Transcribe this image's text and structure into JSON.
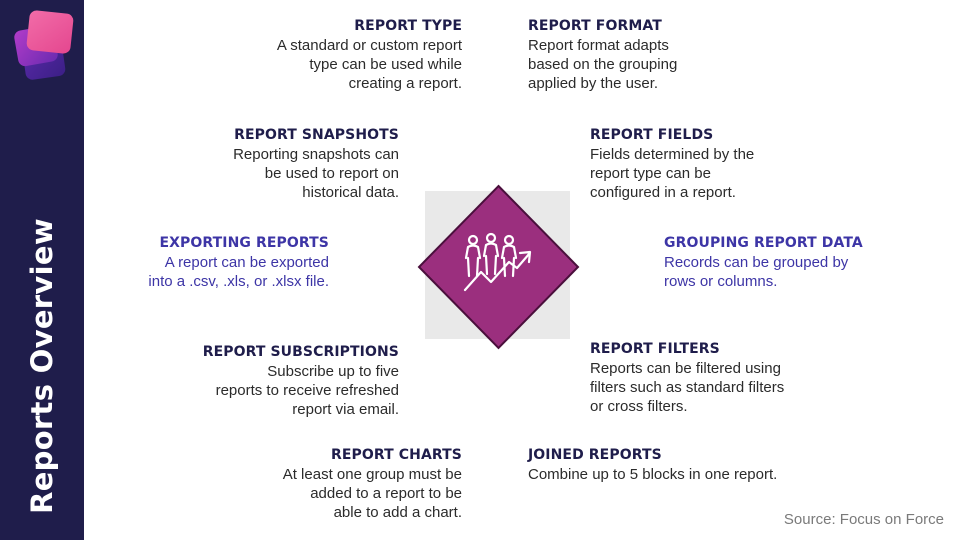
{
  "sidebar": {
    "title": "Reports Overview"
  },
  "items": [
    {
      "title": "REPORT TYPE",
      "text": "A standard or custom report\ntype can be used while\ncreating a report."
    },
    {
      "title": "REPORT FORMAT",
      "text": "Report format adapts\nbased on the grouping\napplied by the user."
    },
    {
      "title": "REPORT SNAPSHOTS",
      "text": "Reporting snapshots can\nbe used to report on\nhistorical data."
    },
    {
      "title": "REPORT FIELDS",
      "text": "Fields determined by the\nreport type can be\nconfigured in a report."
    },
    {
      "title": "EXPORTING REPORTS",
      "text": "A report can be exported\ninto a .csv, .xls, or .xlsx file."
    },
    {
      "title": "GROUPING REPORT DATA",
      "text": "Records can be grouped by\nrows or columns."
    },
    {
      "title": "REPORT SUBSCRIPTIONS",
      "text": "Subscribe up to five\nreports to receive refreshed\nreport via email."
    },
    {
      "title": "REPORT FILTERS",
      "text": "Reports can be filtered using\nfilters such as standard filters\nor cross filters."
    },
    {
      "title": "REPORT CHARTS",
      "text": "At least one group must be\nadded to a report to be\nable to add a chart."
    },
    {
      "title": "JOINED REPORTS",
      "text": "Combine up to 5 blocks in one report."
    }
  ],
  "center_icon": "people-growth-arrow-icon",
  "source": "Source: Focus on Force",
  "colors": {
    "sidebar": "#1f1d4b",
    "heading": "#1f1d4b",
    "accent": "#3d35a6",
    "diamond": "#9b2f7e"
  }
}
